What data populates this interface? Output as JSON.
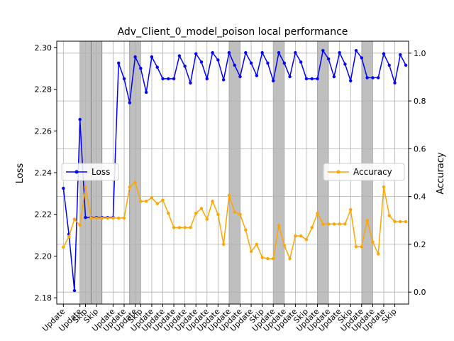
{
  "chart_data": {
    "type": "line",
    "title": "Adv_Client_0_model_poison local performance",
    "ylabel": "Loss",
    "y2label": "Accuracy",
    "ylim": [
      2.177,
      2.303
    ],
    "y2lim": [
      -0.05,
      1.05
    ],
    "yticks": [
      2.18,
      2.2,
      2.22,
      2.24,
      2.26,
      2.28,
      2.3
    ],
    "y2ticks": [
      0.0,
      0.2,
      0.4,
      0.6,
      0.8,
      1.0
    ],
    "xlim": [
      -1.2,
      62.5
    ],
    "grid": true,
    "x_tick_labels": [
      {
        "x": 0,
        "label": "Update"
      },
      {
        "x": 3,
        "label": "Update"
      },
      {
        "x": 4,
        "label": "Skip"
      },
      {
        "x": 6,
        "label": "Skip"
      },
      {
        "x": 9,
        "label": "Update"
      },
      {
        "x": 11,
        "label": "Update"
      },
      {
        "x": 13,
        "label": "Update"
      },
      {
        "x": 14,
        "label": "Skip"
      },
      {
        "x": 16,
        "label": "Update"
      },
      {
        "x": 18,
        "label": "Update"
      },
      {
        "x": 20,
        "label": "Update"
      },
      {
        "x": 22,
        "label": "Update"
      },
      {
        "x": 24,
        "label": "Update"
      },
      {
        "x": 26,
        "label": "Update"
      },
      {
        "x": 28,
        "label": "Update"
      },
      {
        "x": 30,
        "label": "Update"
      },
      {
        "x": 32,
        "label": "Update"
      },
      {
        "x": 34,
        "label": "Update"
      },
      {
        "x": 36,
        "label": "Skip"
      },
      {
        "x": 38,
        "label": "Update"
      },
      {
        "x": 40,
        "label": "Update"
      },
      {
        "x": 42,
        "label": "Update"
      },
      {
        "x": 44,
        "label": "Skip"
      },
      {
        "x": 46,
        "label": "Update"
      },
      {
        "x": 48,
        "label": "Update"
      },
      {
        "x": 50,
        "label": "Update"
      },
      {
        "x": 52,
        "label": "Skip"
      },
      {
        "x": 54,
        "label": "Update"
      },
      {
        "x": 56,
        "label": "Update"
      },
      {
        "x": 58,
        "label": "Update"
      },
      {
        "x": 60,
        "label": "Skip"
      }
    ],
    "skip_regions": [
      [
        3,
        5
      ],
      [
        5,
        7
      ],
      [
        12,
        14
      ],
      [
        30,
        32
      ],
      [
        38,
        40
      ],
      [
        46,
        48
      ],
      [
        54,
        56
      ]
    ],
    "series": [
      {
        "name": "Loss",
        "axis": "left",
        "color": "#0000ff",
        "legend_position": "center-left",
        "x": [
          0,
          1,
          2,
          3,
          4,
          5,
          6,
          7,
          8,
          9,
          10,
          11,
          12,
          13,
          14,
          15,
          16,
          17,
          18,
          19,
          20,
          21,
          22,
          23,
          24,
          25,
          26,
          27,
          28,
          29,
          30,
          31,
          32,
          33,
          34,
          35,
          36,
          37,
          38,
          39,
          40,
          41,
          42,
          43,
          44,
          45,
          46,
          47,
          48,
          49,
          50,
          51,
          52,
          53,
          54,
          55,
          56,
          57,
          58,
          59,
          60,
          61,
          62
        ],
        "values": [
          2.2325,
          2.2105,
          2.1835,
          2.2655,
          2.2185,
          2.2185,
          2.2185,
          2.2185,
          2.2185,
          2.2185,
          2.2925,
          2.285,
          2.2735,
          2.2955,
          2.29,
          2.2785,
          2.2955,
          2.2905,
          2.285,
          2.285,
          2.285,
          2.296,
          2.291,
          2.283,
          2.297,
          2.293,
          2.285,
          2.2975,
          2.294,
          2.2845,
          2.2975,
          2.2915,
          2.286,
          2.2975,
          2.2925,
          2.2865,
          2.2975,
          2.2925,
          2.284,
          2.2975,
          2.2925,
          2.286,
          2.2975,
          2.293,
          2.285,
          2.285,
          2.285,
          2.2985,
          2.2945,
          2.286,
          2.2975,
          2.292,
          2.284,
          2.2985,
          2.295,
          2.2855,
          2.2855,
          2.2855,
          2.297,
          2.2915,
          2.283,
          2.2965,
          2.2915
        ]
      },
      {
        "name": "Accuracy",
        "axis": "right",
        "color": "#ffa500",
        "legend_position": "center-right",
        "x": [
          0,
          1,
          2,
          3,
          4,
          5,
          6,
          7,
          8,
          9,
          10,
          11,
          12,
          13,
          14,
          15,
          16,
          17,
          18,
          19,
          20,
          21,
          22,
          23,
          24,
          25,
          26,
          27,
          28,
          29,
          30,
          31,
          32,
          33,
          34,
          35,
          36,
          37,
          38,
          39,
          40,
          41,
          42,
          43,
          44,
          45,
          46,
          47,
          48,
          49,
          50,
          51,
          52,
          53,
          54,
          55,
          56,
          57,
          58,
          59,
          60,
          61,
          62
        ],
        "values": [
          0.188,
          0.232,
          0.305,
          0.28,
          0.44,
          0.31,
          0.31,
          0.31,
          0.31,
          0.31,
          0.31,
          0.31,
          0.44,
          0.46,
          0.38,
          0.38,
          0.395,
          0.37,
          0.385,
          0.33,
          0.27,
          0.27,
          0.27,
          0.27,
          0.33,
          0.35,
          0.305,
          0.38,
          0.325,
          0.2,
          0.405,
          0.335,
          0.325,
          0.26,
          0.17,
          0.2,
          0.145,
          0.14,
          0.14,
          0.28,
          0.195,
          0.14,
          0.235,
          0.235,
          0.22,
          0.27,
          0.33,
          0.285,
          0.285,
          0.285,
          0.285,
          0.285,
          0.345,
          0.19,
          0.19,
          0.3,
          0.21,
          0.16,
          0.44,
          0.32,
          0.295,
          0.295,
          0.295
        ]
      }
    ]
  }
}
